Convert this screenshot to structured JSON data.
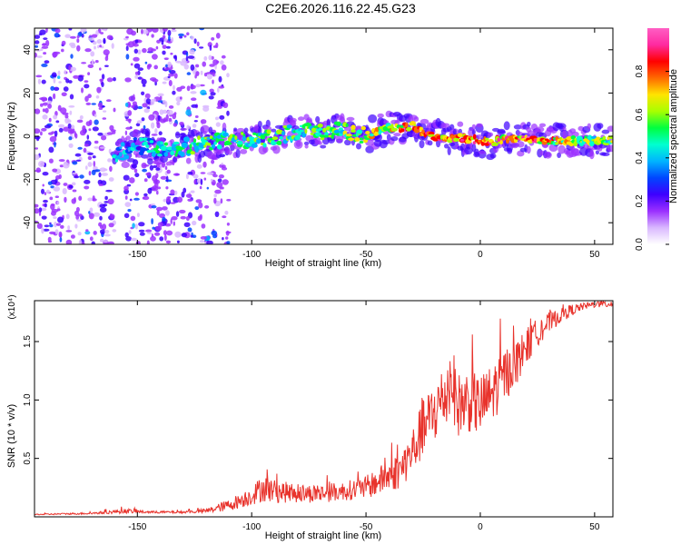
{
  "title": "C2E6.2026.116.22.45.G23",
  "chart_data": [
    {
      "type": "heatmap",
      "title": "C2E6.2026.116.22.45.G23",
      "xlabel": "Height of straight line (km)",
      "ylabel": "Frequency (Hz)",
      "xlim": [
        -195,
        58
      ],
      "ylim": [
        -50,
        50
      ],
      "xticks": [
        -150,
        -100,
        -50,
        0,
        50
      ],
      "xtick_labels": [
        "-150",
        "-100",
        "-50",
        "0",
        "50"
      ],
      "yticks": [
        -40,
        -20,
        0,
        20,
        40
      ],
      "ytick_labels": [
        "-40",
        "-20",
        "0",
        "20",
        "40"
      ],
      "colorbar": {
        "label": "Normalized spectral amplitude",
        "range": [
          0,
          1
        ],
        "ticks": [
          0.0,
          0.2,
          0.4,
          0.6,
          0.8
        ],
        "tick_labels": [
          "0.0",
          "0.2",
          "0.4",
          "0.6",
          "0.8"
        ],
        "colors": [
          "#ffffff",
          "#d9b8ff",
          "#9b30ff",
          "#3d00ff",
          "#0046ff",
          "#00b4ff",
          "#00ffd0",
          "#00ff40",
          "#a8ff00",
          "#ffe400",
          "#ff6a00",
          "#ff0000",
          "#ff2aa0",
          "#ff5ec4"
        ]
      },
      "ridge": {
        "x": [
          -158,
          -150,
          -140,
          -130,
          -120,
          -110,
          -100,
          -90,
          -80,
          -70,
          -60,
          -50,
          -45,
          -40,
          -35,
          -30,
          -25,
          -20,
          -15,
          -10,
          -5,
          0,
          5,
          10,
          20,
          30,
          40,
          50,
          57
        ],
        "y": [
          -8,
          -4,
          -6,
          -5,
          -3,
          -2,
          -2,
          0,
          2,
          2,
          3,
          0,
          2,
          4,
          4,
          5,
          2,
          0,
          -1,
          -1,
          -1,
          -2,
          -3,
          -1,
          -1,
          -2,
          -2,
          -2,
          -2
        ],
        "amp": [
          0.45,
          0.4,
          0.55,
          0.55,
          0.6,
          0.6,
          0.6,
          0.62,
          0.62,
          0.62,
          0.65,
          0.72,
          0.8,
          0.8,
          0.82,
          0.85,
          0.88,
          0.9,
          0.88,
          0.9,
          0.9,
          0.92,
          0.9,
          0.95,
          0.95,
          0.82,
          0.7,
          0.7,
          0.7
        ]
      }
    },
    {
      "type": "line",
      "xlabel": "Height of straight line (km)",
      "ylabel": "SNR (10 * v/v)",
      "multiplier_label": "(x10⁴)",
      "xlim": [
        -195,
        58
      ],
      "ylim": [
        0,
        1.85
      ],
      "xticks": [
        -150,
        -100,
        -50,
        0,
        50
      ],
      "xtick_labels": [
        "-150",
        "-100",
        "-50",
        "0",
        "50"
      ],
      "yticks": [
        0.5,
        1.0,
        1.5
      ],
      "ytick_labels": [
        "0.5",
        "1.0",
        "1.5"
      ],
      "color": "#e8332c",
      "series": [
        {
          "name": "SNR",
          "x": [
            -195,
            -170,
            -155,
            -145,
            -130,
            -120,
            -110,
            -100,
            -95,
            -90,
            -80,
            -70,
            -60,
            -50,
            -45,
            -40,
            -35,
            -30,
            -25,
            -20,
            -15,
            -12,
            -10,
            -5,
            0,
            5,
            10,
            15,
            20,
            25,
            30,
            35,
            40,
            45,
            50,
            55,
            58
          ],
          "y": [
            0.02,
            0.03,
            0.05,
            0.04,
            0.04,
            0.05,
            0.1,
            0.18,
            0.25,
            0.22,
            0.2,
            0.2,
            0.22,
            0.25,
            0.3,
            0.35,
            0.4,
            0.55,
            0.75,
            0.9,
            1.05,
            1.15,
            0.95,
            1.0,
            0.95,
            1.05,
            1.2,
            1.3,
            1.45,
            1.58,
            1.66,
            1.72,
            1.77,
            1.8,
            1.82,
            1.82,
            1.82
          ],
          "noise": [
            0.005,
            0.008,
            0.02,
            0.01,
            0.01,
            0.02,
            0.05,
            0.08,
            0.12,
            0.1,
            0.08,
            0.08,
            0.08,
            0.1,
            0.12,
            0.14,
            0.16,
            0.2,
            0.25,
            0.28,
            0.3,
            0.3,
            0.28,
            0.28,
            0.26,
            0.26,
            0.24,
            0.2,
            0.16,
            0.12,
            0.09,
            0.06,
            0.05,
            0.03,
            0.03,
            0.03,
            0.03
          ]
        }
      ]
    }
  ]
}
